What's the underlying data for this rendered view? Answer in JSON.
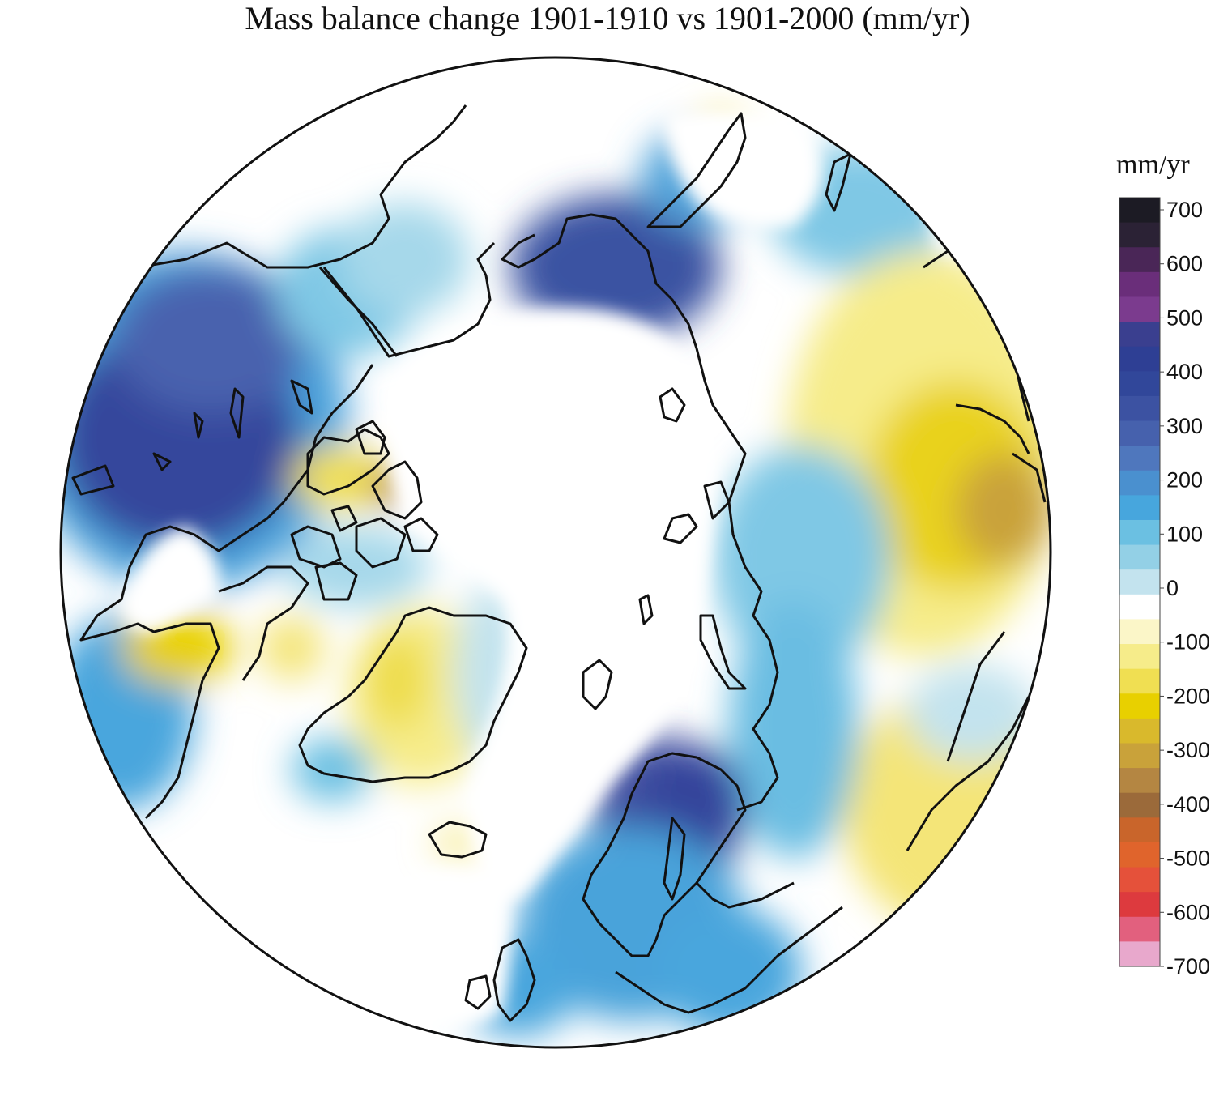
{
  "title": "Mass balance change 1901-1910 vs 1901-2000 (mm/yr)",
  "colorbar": {
    "unit_label": "mm/yr",
    "tick_labels": [
      "700",
      "600",
      "500",
      "400",
      "300",
      "200",
      "100",
      "0",
      "-100",
      "-200",
      "-300",
      "-400",
      "-500",
      "-600",
      "-700"
    ],
    "range": [
      -700,
      700
    ],
    "colors": {
      "ramp_top_to_bottom": [
        "#1c1b24",
        "#2b2235",
        "#4a2657",
        "#6a2e7a",
        "#7b3b8e",
        "#3a3f8f",
        "#2e3f94",
        "#31479a",
        "#3c52a2",
        "#4661ad",
        "#4f77bd",
        "#4a90cf",
        "#47a6dd",
        "#6bc0e2",
        "#93d0e6",
        "#c3e3ee",
        "#ffffff",
        "#fbf6c8",
        "#f6ec8a",
        "#f0df52",
        "#e8d000",
        "#d9b92c",
        "#c9a23a",
        "#b48642",
        "#9b6a3a",
        "#c9652b",
        "#e0642c",
        "#e5513a",
        "#dd3a3e",
        "#e2607e",
        "#e8a8cc"
      ]
    }
  },
  "map": {
    "projection": "north polar stereographic",
    "regions": [
      {
        "name": "western-canada-high",
        "level": 400
      },
      {
        "name": "siberia-east-high",
        "level": 400
      },
      {
        "name": "scandinavia-high",
        "level": 300
      },
      {
        "name": "greenland-west-low",
        "level": -100
      },
      {
        "name": "central-russia-low",
        "level": -200
      },
      {
        "name": "ellesmere-low",
        "level": -400
      },
      {
        "name": "europe-moderate",
        "level": 150
      },
      {
        "name": "alaska-low",
        "level": -100
      }
    ]
  }
}
